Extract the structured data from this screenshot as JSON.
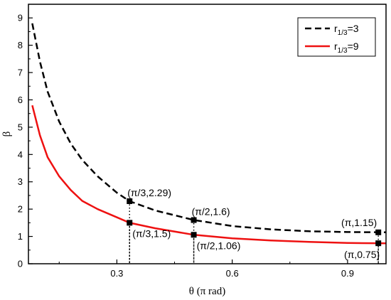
{
  "chart_data": {
    "type": "line",
    "xlabel": "θ (π rad)",
    "ylabel": "β",
    "xlim": [
      0.07,
      1.0
    ],
    "ylim": [
      0,
      9.5
    ],
    "xticks": [
      0.3,
      0.6,
      0.9
    ],
    "yticks": [
      0,
      1,
      2,
      3,
      4,
      5,
      6,
      7,
      8,
      9
    ],
    "grid": false,
    "legend_position": "top-right",
    "series": [
      {
        "name_main": "r",
        "name_sub": "1/3",
        "name_tail": "=3",
        "style": "dashed",
        "color": "#000000",
        "x": [
          0.08,
          0.1,
          0.12,
          0.15,
          0.18,
          0.21,
          0.25,
          0.3,
          0.333,
          0.4,
          0.5,
          0.6,
          0.7,
          0.8,
          0.9,
          1.0
        ],
        "y": [
          8.8,
          7.4,
          6.3,
          5.2,
          4.4,
          3.8,
          3.2,
          2.6,
          2.29,
          1.95,
          1.6,
          1.38,
          1.26,
          1.19,
          1.16,
          1.15
        ]
      },
      {
        "name_main": "r",
        "name_sub": "1/3",
        "name_tail": "=9",
        "style": "solid",
        "color": "#ee1111",
        "x": [
          0.08,
          0.1,
          0.12,
          0.15,
          0.18,
          0.21,
          0.25,
          0.3,
          0.333,
          0.4,
          0.5,
          0.6,
          0.7,
          0.8,
          0.9,
          1.0
        ],
        "y": [
          5.8,
          4.7,
          3.9,
          3.2,
          2.7,
          2.3,
          2.0,
          1.7,
          1.5,
          1.3,
          1.06,
          0.93,
          0.85,
          0.8,
          0.76,
          0.75
        ]
      }
    ],
    "annotations": [
      {
        "x": 0.333,
        "y": 2.29,
        "label": "(π/3,2.29)",
        "pos": "above"
      },
      {
        "x": 0.333,
        "y": 1.5,
        "label": "(π/3,1.5)",
        "pos": "below-right"
      },
      {
        "x": 0.5,
        "y": 1.6,
        "label": "(π/2,1.6)",
        "pos": "above"
      },
      {
        "x": 0.5,
        "y": 1.06,
        "label": "(π/2,1.06)",
        "pos": "below-right"
      },
      {
        "x": 0.98,
        "y": 1.15,
        "label": "(π,1.15)",
        "pos": "above-left"
      },
      {
        "x": 0.98,
        "y": 0.75,
        "label": "(π,0.75)",
        "pos": "below-left"
      }
    ]
  }
}
